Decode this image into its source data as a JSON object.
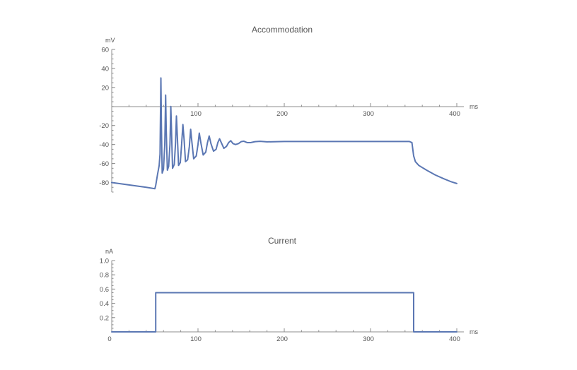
{
  "colors": {
    "trace": "#5b77b3",
    "axis": "#8c8c8c",
    "text": "#555555"
  },
  "chart_data": [
    {
      "type": "line",
      "title": "Accommodation",
      "xlabel": "ms",
      "ylabel": "mV",
      "xlim": [
        0,
        400
      ],
      "ylim": [
        -90,
        60
      ],
      "x_ticks": [
        100,
        200,
        300,
        400
      ],
      "y_ticks": [
        -80,
        -60,
        -40,
        -20,
        20,
        40,
        60
      ],
      "series": [
        {
          "points": [
            [
              0,
              -80
            ],
            [
              20,
              -82.5
            ],
            [
              40,
              -85
            ],
            [
              50,
              -86.5
            ],
            [
              51,
              -83
            ],
            [
              53,
              -72
            ],
            [
              55,
              -62
            ],
            [
              56,
              -50
            ],
            [
              57,
              30
            ],
            [
              57.6,
              -20
            ],
            [
              58.5,
              -70
            ],
            [
              60,
              -66
            ],
            [
              61.5,
              -40
            ],
            [
              62.5,
              12
            ],
            [
              63.2,
              -25
            ],
            [
              64.5,
              -67
            ],
            [
              66,
              -63
            ],
            [
              67.5,
              -40
            ],
            [
              68.5,
              0
            ],
            [
              69.3,
              -25
            ],
            [
              70.5,
              -65
            ],
            [
              72.5,
              -61
            ],
            [
              74,
              -38
            ],
            [
              75,
              -10
            ],
            [
              76,
              -30
            ],
            [
              77.5,
              -62
            ],
            [
              79.5,
              -59
            ],
            [
              81,
              -40
            ],
            [
              82.5,
              -19
            ],
            [
              84,
              -36
            ],
            [
              85.5,
              -58
            ],
            [
              88,
              -56
            ],
            [
              90,
              -42
            ],
            [
              91.5,
              -24
            ],
            [
              93,
              -38
            ],
            [
              95,
              -55
            ],
            [
              98,
              -52
            ],
            [
              100,
              -40
            ],
            [
              101.5,
              -28
            ],
            [
              103.5,
              -39
            ],
            [
              106,
              -51
            ],
            [
              109,
              -48
            ],
            [
              111,
              -38
            ],
            [
              113,
              -31
            ],
            [
              115,
              -39
            ],
            [
              118,
              -47
            ],
            [
              121,
              -45
            ],
            [
              123,
              -38
            ],
            [
              125,
              -34
            ],
            [
              127.5,
              -39
            ],
            [
              130,
              -44
            ],
            [
              133,
              -42
            ],
            [
              135.5,
              -38
            ],
            [
              138,
              -36
            ],
            [
              140.5,
              -39
            ],
            [
              143.5,
              -40
            ],
            [
              147,
              -39
            ],
            [
              150,
              -37
            ],
            [
              153,
              -36.5
            ],
            [
              157,
              -38
            ],
            [
              161,
              -38
            ],
            [
              166,
              -37
            ],
            [
              172,
              -36.6
            ],
            [
              180,
              -37.2
            ],
            [
              200,
              -36.8
            ],
            [
              250,
              -36.8
            ],
            [
              300,
              -36.8
            ],
            [
              345,
              -36.8
            ],
            [
              348,
              -38
            ],
            [
              350,
              -52
            ],
            [
              352,
              -58
            ],
            [
              356,
              -62
            ],
            [
              365,
              -67
            ],
            [
              375,
              -72
            ],
            [
              385,
              -76
            ],
            [
              393,
              -79
            ],
            [
              400,
              -81
            ]
          ]
        }
      ]
    },
    {
      "type": "line",
      "title": "Current",
      "xlabel": "ms",
      "ylabel": "nA",
      "xlim": [
        0,
        400
      ],
      "ylim": [
        0,
        1.0
      ],
      "x_ticks": [
        0,
        100,
        200,
        300,
        400
      ],
      "y_ticks": [
        0.2,
        0.4,
        0.6,
        0.8,
        1.0
      ],
      "series": [
        {
          "points": [
            [
              0,
              0
            ],
            [
              51,
              0
            ],
            [
              51,
              0.55
            ],
            [
              350,
              0.55
            ],
            [
              350,
              0
            ],
            [
              400,
              0
            ]
          ]
        }
      ]
    }
  ]
}
